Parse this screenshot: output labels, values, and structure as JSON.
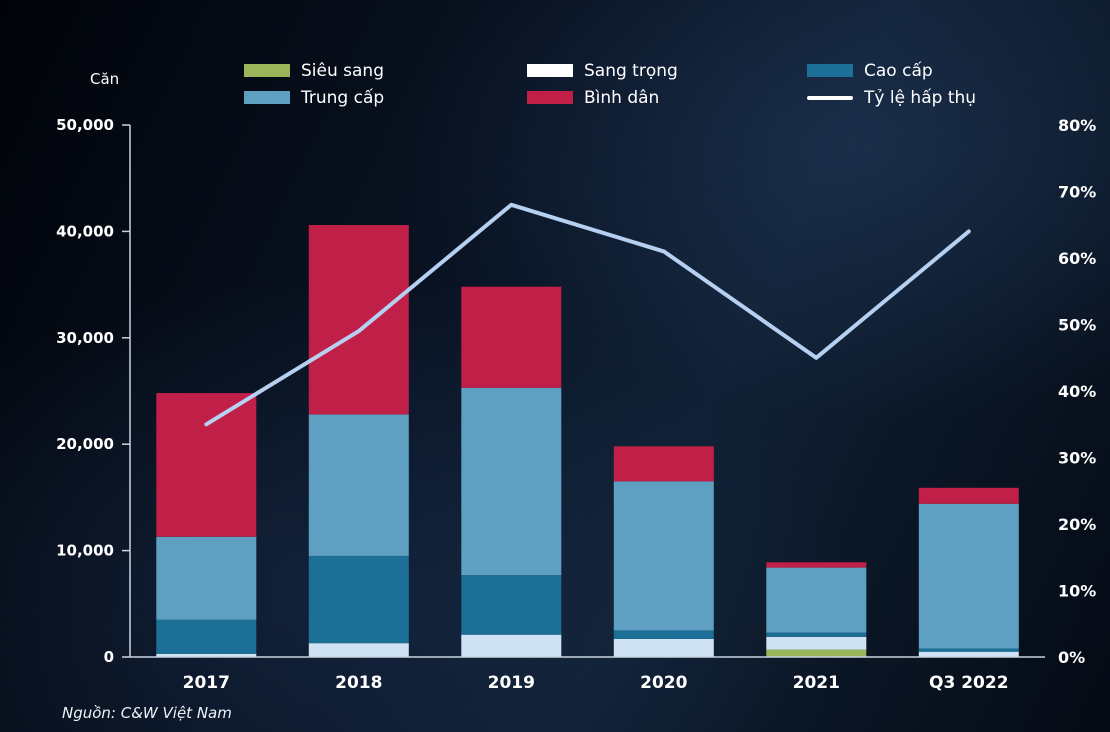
{
  "colors": {
    "axis": "#c9d3e0",
    "text": "#ffffff"
  },
  "chart": {
    "unit_label": "Căn",
    "source_note": "Nguồn: C&W Việt Nam"
  },
  "legend": {
    "rows": [
      [
        {
          "label": "Siêu sang",
          "color": "#9bb55a",
          "swatch": "box"
        },
        {
          "label": "Sang trọng",
          "color": "#ffffff",
          "swatch": "box"
        },
        {
          "label": "Cao cấp",
          "color": "#1c6f96",
          "swatch": "box"
        }
      ],
      [
        {
          "label": "Trung cấp",
          "color": "#5f9fc2",
          "swatch": "box"
        },
        {
          "label": "Bình dân",
          "color": "#c01f47",
          "swatch": "box"
        },
        {
          "label": "Tỷ lệ hấp thụ",
          "color": "#ffffff",
          "swatch": "line"
        }
      ]
    ]
  },
  "chart_data": {
    "type": "bar",
    "subtype": "stacked-bars-with-line-overlay",
    "title": "",
    "categories": [
      "2017",
      "2018",
      "2019",
      "2020",
      "2021",
      "Q3 2022"
    ],
    "series": [
      {
        "id": "sieu-sang",
        "name": "Siêu sang",
        "type": "bar",
        "color": "#9bb55a",
        "values": [
          0,
          0,
          0,
          0,
          700,
          0
        ]
      },
      {
        "id": "sang-trong",
        "name": "Sang trọng",
        "type": "bar",
        "color": "#cfe2f3",
        "values": [
          300,
          1300,
          2100,
          1700,
          1200,
          500
        ]
      },
      {
        "id": "cao-cap",
        "name": "Cao cấp",
        "type": "bar",
        "color": "#1c6f96",
        "values": [
          3200,
          8200,
          5600,
          800,
          400,
          300
        ]
      },
      {
        "id": "trung-cap",
        "name": "Trung cấp",
        "type": "bar",
        "color": "#5f9fc2",
        "values": [
          7800,
          13300,
          17600,
          14000,
          6100,
          13600
        ]
      },
      {
        "id": "binh-dan",
        "name": "Bình dân",
        "type": "bar",
        "color": "#c01f47",
        "values": [
          13500,
          17800,
          9500,
          3300,
          500,
          1500
        ]
      },
      {
        "id": "ty-le-hap-thu",
        "name": "Tỷ lệ hấp thụ",
        "type": "line",
        "axis": "right",
        "color": "#b6d0f2",
        "values": [
          35,
          49,
          68,
          61,
          45,
          64
        ]
      }
    ],
    "bar_totals": [
      24800,
      40600,
      34800,
      19800,
      8900,
      15900
    ],
    "left_axis": {
      "title": "Căn",
      "min": 0,
      "max": 50000,
      "step": 10000,
      "tick_labels": [
        "0",
        "10,000",
        "20,000",
        "30,000",
        "40,000",
        "50,000"
      ]
    },
    "right_axis": {
      "min": 0,
      "max": 80,
      "step": 10,
      "unit": "%",
      "tick_labels": [
        "0%",
        "10%",
        "20%",
        "30%",
        "40%",
        "50%",
        "60%",
        "70%",
        "80%"
      ]
    },
    "grid": false,
    "legend_position": "top"
  }
}
